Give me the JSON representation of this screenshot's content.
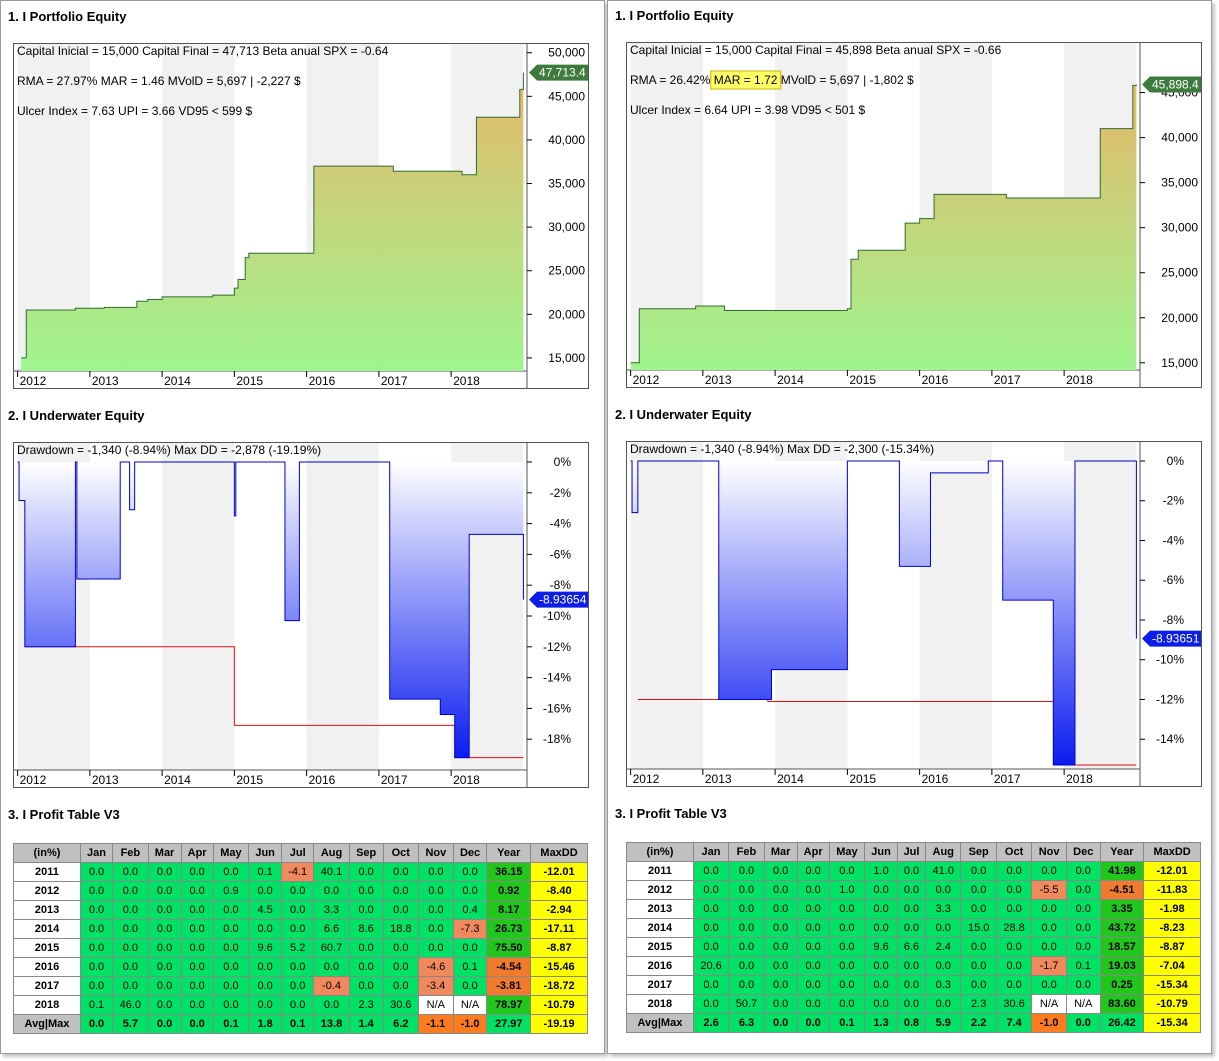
{
  "panels": [
    {
      "equity": {
        "title": "1. I Portfolio Equity",
        "stats_line1": "Capital Inicial = 15,000  Capital Final = 47,713   Beta anual SPX = -0.64",
        "stats_line2_a": "RMA = 27.97%   ",
        "stats_line2_mar": "MAR = 1.46",
        "stats_line2_b": "   MVolD = 5,697 | -2,227 $",
        "stats_line3": "Ulcer Index = 7.63   UPI = 3.66   VD95 < 599 $",
        "last_value_label": "47,713.4"
      },
      "underwater": {
        "title": "2. I Underwater Equity",
        "stats_line": "Drawdown = -1,340 (-8.94%)      Max DD = -2,878 (-19.19%)",
        "last_value_label": "-8.93654"
      },
      "profit": {
        "title": "3. I Profit Table V3",
        "headers": [
          "(in%)",
          "Jan",
          "Feb",
          "Mar",
          "Apr",
          "May",
          "Jun",
          "Jul",
          "Aug",
          "Sep",
          "Oct",
          "Nov",
          "Dec",
          "Year",
          "MaxDD"
        ],
        "rows": [
          [
            "2011",
            "0.0",
            "0.0",
            "0.0",
            "0.0",
            "0.0",
            "0.1",
            "-4.1",
            "40.1",
            "0.0",
            "0.0",
            "0.0",
            "0.0",
            "36.15",
            "-12.01"
          ],
          [
            "2012",
            "0.0",
            "0.0",
            "0.0",
            "0.0",
            "0.9",
            "0.0",
            "0.0",
            "0.0",
            "0.0",
            "0.0",
            "0.0",
            "0.0",
            "0.92",
            "-8.40"
          ],
          [
            "2013",
            "0.0",
            "0.0",
            "0.0",
            "0.0",
            "0.0",
            "4.5",
            "0.0",
            "3.3",
            "0.0",
            "0.0",
            "0.0",
            "0.4",
            "8.17",
            "-2.94"
          ],
          [
            "2014",
            "0.0",
            "0.0",
            "0.0",
            "0.0",
            "0.0",
            "0.0",
            "0.0",
            "6.6",
            "8.6",
            "18.8",
            "0.0",
            "-7.3",
            "26.73",
            "-17.11"
          ],
          [
            "2015",
            "0.0",
            "0.0",
            "0.0",
            "0.0",
            "0.0",
            "9.6",
            "5.2",
            "60.7",
            "0.0",
            "0.0",
            "0.0",
            "0.0",
            "75.50",
            "-8.87"
          ],
          [
            "2016",
            "0.0",
            "0.0",
            "0.0",
            "0.0",
            "0.0",
            "0.0",
            "0.0",
            "0.0",
            "0.0",
            "0.0",
            "-4.6",
            "0.1",
            "-4.54",
            "-15.46"
          ],
          [
            "2017",
            "0.0",
            "0.0",
            "0.0",
            "0.0",
            "0.0",
            "0.0",
            "0.0",
            "-0.4",
            "0.0",
            "0.0",
            "-3.4",
            "0.0",
            "-3.81",
            "-18.72"
          ],
          [
            "2018",
            "0.1",
            "46.0",
            "0.0",
            "0.0",
            "0.0",
            "0.0",
            "0.0",
            "0.0",
            "2.3",
            "30.6",
            "N/A",
            "N/A",
            "78.97",
            "-10.79"
          ]
        ],
        "avg": [
          "Avg|Max",
          "0.0",
          "5.7",
          "0.0",
          "0.0",
          "0.1",
          "1.8",
          "0.1",
          "13.8",
          "1.4",
          "6.2",
          "-1.1",
          "-1.0",
          "27.97",
          "-19.19"
        ]
      }
    },
    {
      "equity": {
        "title": "1. I Portfolio Equity",
        "stats_line1": "Capital Inicial = 15,000  Capital Final = 45,898   Beta anual SPX = -0.66",
        "stats_line2_a": "RMA = 26.42%  ",
        "stats_line2_mar": "MAR = 1.72",
        "stats_line2_b": "  MVolD = 5,697 | -1,802 $",
        "stats_line3": "Ulcer Index = 6.64   UPI = 3.98   VD95 < 501 $",
        "last_value_label": "45,898.4"
      },
      "underwater": {
        "title": "2. I Underwater Equity",
        "stats_line": "Drawdown = -1,340 (-8.94%)      Max DD = -2,300 (-15.34%)",
        "last_value_label": "-8.93651"
      },
      "profit": {
        "title": "3. I Profit Table V3",
        "headers": [
          "(in%)",
          "Jan",
          "Feb",
          "Mar",
          "Apr",
          "May",
          "Jun",
          "Jul",
          "Aug",
          "Sep",
          "Oct",
          "Nov",
          "Dec",
          "Year",
          "MaxDD"
        ],
        "rows": [
          [
            "2011",
            "0.0",
            "0.0",
            "0.0",
            "0.0",
            "0.0",
            "1.0",
            "0.0",
            "41.0",
            "0.0",
            "0.0",
            "0.0",
            "0.0",
            "41.98",
            "-12.01"
          ],
          [
            "2012",
            "0.0",
            "0.0",
            "0.0",
            "0.0",
            "1.0",
            "0.0",
            "0.0",
            "0.0",
            "0.0",
            "0.0",
            "-5.5",
            "0.0",
            "-4.51",
            "-11.83"
          ],
          [
            "2013",
            "0.0",
            "0.0",
            "0.0",
            "0.0",
            "0.0",
            "0.0",
            "0.0",
            "3.3",
            "0.0",
            "0.0",
            "0.0",
            "0.0",
            "3.35",
            "-1.98"
          ],
          [
            "2014",
            "0.0",
            "0.0",
            "0.0",
            "0.0",
            "0.0",
            "0.0",
            "0.0",
            "0.0",
            "15.0",
            "28.8",
            "0.0",
            "0.0",
            "43.72",
            "-8.23"
          ],
          [
            "2015",
            "0.0",
            "0.0",
            "0.0",
            "0.0",
            "0.0",
            "9.6",
            "6.6",
            "2.4",
            "0.0",
            "0.0",
            "0.0",
            "0.0",
            "18.57",
            "-8.87"
          ],
          [
            "2016",
            "20.6",
            "0.0",
            "0.0",
            "0.0",
            "0.0",
            "0.0",
            "0.0",
            "0.0",
            "0.0",
            "0.0",
            "-1.7",
            "0.1",
            "19.03",
            "-7.04"
          ],
          [
            "2017",
            "0.0",
            "0.0",
            "0.0",
            "0.0",
            "0.0",
            "0.0",
            "0.0",
            "0.3",
            "0.0",
            "0.0",
            "0.0",
            "0.0",
            "0.25",
            "-15.34"
          ],
          [
            "2018",
            "0.0",
            "50.7",
            "0.0",
            "0.0",
            "0.0",
            "0.0",
            "0.0",
            "0.0",
            "2.3",
            "30.6",
            "N/A",
            "N/A",
            "83.60",
            "-10.79"
          ]
        ],
        "avg": [
          "Avg|Max",
          "2.6",
          "6.3",
          "0.0",
          "0.0",
          "0.1",
          "1.3",
          "0.8",
          "5.9",
          "2.2",
          "7.4",
          "-1.0",
          "0.0",
          "26.42",
          "-15.34"
        ]
      }
    }
  ],
  "chart_data": [
    {
      "type": "area",
      "name_hint": "left portfolio equity",
      "x_tick_labels": [
        "2012",
        "2013",
        "2014",
        "2015",
        "2016",
        "2017",
        "2018"
      ],
      "ylim": [
        13500,
        51000
      ],
      "y_ticks": [
        15000,
        20000,
        25000,
        30000,
        35000,
        40000,
        45000,
        50000
      ],
      "y_tick_labels": [
        "15,000",
        "20,000",
        "25,000",
        "30,000",
        "35,000",
        "40,000",
        "45,000",
        "50,000"
      ],
      "x": [
        2011.55,
        2011.6,
        2011.62,
        2012.0,
        2012.3,
        2012.5,
        2012.7,
        2013.0,
        2013.15,
        2013.3,
        2013.5,
        2014.0,
        2014.2,
        2014.45,
        2014.5,
        2014.55,
        2014.65,
        2014.7,
        2015.1,
        2015.5,
        2015.6,
        2016.0,
        2016.2,
        2016.6,
        2016.7,
        2017.0,
        2017.2,
        2017.6,
        2017.65,
        2017.8,
        2017.85,
        2018.3,
        2018.45,
        2018.5
      ],
      "y": [
        15000,
        15000,
        20500,
        20500,
        20700,
        20700,
        20800,
        20800,
        21500,
        21700,
        22000,
        22000,
        22200,
        22200,
        23000,
        24000,
        26500,
        27000,
        27000,
        27000,
        37000,
        37000,
        37000,
        37000,
        36400,
        36400,
        36400,
        36400,
        36000,
        36000,
        42600,
        42600,
        45800,
        47713
      ]
    },
    {
      "type": "area",
      "name_hint": "left underwater equity",
      "x_tick_labels": [
        "2012",
        "2013",
        "2014",
        "2015",
        "2016",
        "2017",
        "2018"
      ],
      "ylim": [
        -20,
        0.5
      ],
      "y_ticks": [
        0,
        -2,
        -4,
        -6,
        -8,
        -10,
        -12,
        -14,
        -16,
        -18
      ],
      "y_tick_labels": [
        "0%",
        "-2%",
        "-4%",
        "-6%",
        "-8%",
        "-10%",
        "-12%",
        "-14%",
        "-16%",
        "-18%"
      ],
      "x": [
        2011.5,
        2011.52,
        2011.58,
        2011.6,
        2012.3,
        2012.32,
        2012.9,
        2012.92,
        2013.05,
        2013.1,
        2013.12,
        2014.45,
        2014.5,
        2014.52,
        2015.2,
        2015.3,
        2015.4,
        2015.5,
        2015.6,
        2016.6,
        2016.65,
        2017.0,
        2017.2,
        2017.35,
        2017.4,
        2017.55,
        2017.6,
        2017.75,
        2017.8,
        2017.85,
        2018.4,
        2018.5
      ],
      "y": [
        0,
        -2.5,
        -2.5,
        -12.0,
        0,
        -7.6,
        -7.6,
        0,
        -3.1,
        -3.1,
        0,
        0,
        -3.5,
        0,
        -10.3,
        -10.3,
        0,
        0,
        0,
        0,
        -15.4,
        -15.4,
        -15.4,
        -16.4,
        -16.4,
        -19.2,
        -19.2,
        -4.7,
        -4.7,
        -4.7,
        -4.7,
        -8.94
      ],
      "max_dd_line": [
        [
          2011.6,
          -12.0
        ],
        [
          2014.5,
          -12.0
        ],
        [
          2014.5,
          -17.1
        ],
        [
          2017.55,
          -17.1
        ],
        [
          2017.55,
          -19.2
        ],
        [
          2018.5,
          -19.2
        ]
      ]
    },
    {
      "type": "area",
      "name_hint": "right portfolio equity",
      "x_tick_labels": [
        "2012",
        "2013",
        "2014",
        "2015",
        "2016",
        "2017",
        "2018"
      ],
      "ylim": [
        14200,
        50500
      ],
      "y_ticks": [
        15000,
        20000,
        25000,
        30000,
        35000,
        40000,
        45000
      ],
      "y_tick_labels": [
        "15,000",
        "20,000",
        "25,000",
        "30,000",
        "35,000",
        "40,000",
        "45,000"
      ],
      "x": [
        2011.5,
        2011.55,
        2011.62,
        2012.0,
        2012.4,
        2012.6,
        2012.8,
        2013.3,
        2013.6,
        2014.5,
        2014.55,
        2014.65,
        2015.0,
        2015.3,
        2015.5,
        2015.7,
        2016.0,
        2016.5,
        2016.7,
        2017.0,
        2017.3,
        2017.5,
        2017.7,
        2018.0,
        2018.3,
        2018.45,
        2018.5
      ],
      "y": [
        15000,
        15000,
        21000,
        21000,
        21300,
        21300,
        20800,
        20800,
        20800,
        21000,
        26500,
        27500,
        27500,
        30500,
        31000,
        33700,
        33700,
        33700,
        33300,
        33300,
        33300,
        33300,
        33300,
        41000,
        41000,
        45800,
        45898
      ],
      "highlighted_stat": "MAR = 1.72"
    },
    {
      "type": "area",
      "name_hint": "right underwater equity",
      "x_tick_labels": [
        "2012",
        "2013",
        "2014",
        "2015",
        "2016",
        "2017",
        "2018"
      ],
      "ylim": [
        -15.5,
        0.5
      ],
      "y_ticks": [
        0,
        -2,
        -4,
        -6,
        -8,
        -10,
        -12,
        -14
      ],
      "y_tick_labels": [
        "0%",
        "-2%",
        "-4%",
        "-6%",
        "-8%",
        "-10%",
        "-12%",
        "-14%"
      ],
      "x": [
        2011.5,
        2011.52,
        2011.58,
        2011.6,
        2012.7,
        2012.72,
        2013.4,
        2013.45,
        2014.45,
        2014.5,
        2015.2,
        2015.22,
        2015.6,
        2015.65,
        2016.4,
        2016.45,
        2016.6,
        2016.65,
        2017.3,
        2017.35,
        2017.6,
        2017.65,
        2018.0,
        2018.05,
        2018.5
      ],
      "y": [
        0,
        -2.6,
        -2.6,
        0,
        0,
        -12.0,
        -12.0,
        -10.5,
        -10.5,
        0,
        0,
        -5.3,
        -5.3,
        -0.6,
        -0.6,
        0,
        0,
        -7.0,
        -7.0,
        -15.3,
        -15.3,
        0,
        0,
        0,
        -8.94
      ],
      "max_dd_line": [
        [
          2011.6,
          -12.0
        ],
        [
          2013.4,
          -12.0
        ],
        [
          2013.4,
          -12.1
        ],
        [
          2017.6,
          -12.1
        ],
        [
          2017.6,
          -15.3
        ],
        [
          2018.5,
          -15.3
        ]
      ]
    }
  ]
}
